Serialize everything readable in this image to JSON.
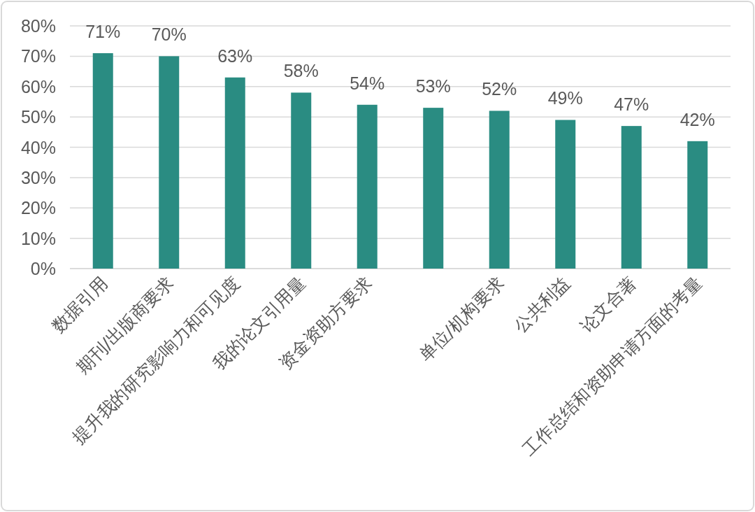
{
  "chart_data": {
    "type": "bar",
    "categories": [
      "数据引用",
      "期刊/出版商要求",
      "提升我的研究影响力和可见度",
      "我的论文引用量",
      "资金资助方要求",
      null,
      "单位/机构要求",
      "公共利益",
      "论文合著",
      "工作总结和资助申请方面的考量"
    ],
    "values": [
      71,
      70,
      63,
      58,
      54,
      53,
      52,
      49,
      47,
      42
    ],
    "value_labels": [
      "71%",
      "70%",
      "63%",
      "58%",
      "54%",
      "53%",
      "52%",
      "49%",
      "47%",
      "42%"
    ],
    "color": "#2a8c82",
    "ylim": [
      0,
      80
    ],
    "yticks": [
      {
        "value": 0,
        "label": "0%"
      },
      {
        "value": 10,
        "label": "10%"
      },
      {
        "value": 20,
        "label": "20%"
      },
      {
        "value": 30,
        "label": "30%"
      },
      {
        "value": 40,
        "label": "40%"
      },
      {
        "value": 50,
        "label": "50%"
      },
      {
        "value": 60,
        "label": "60%"
      },
      {
        "value": 70,
        "label": "70%"
      },
      {
        "value": 80,
        "label": "80%"
      }
    ],
    "grid": "y",
    "legend": false
  }
}
